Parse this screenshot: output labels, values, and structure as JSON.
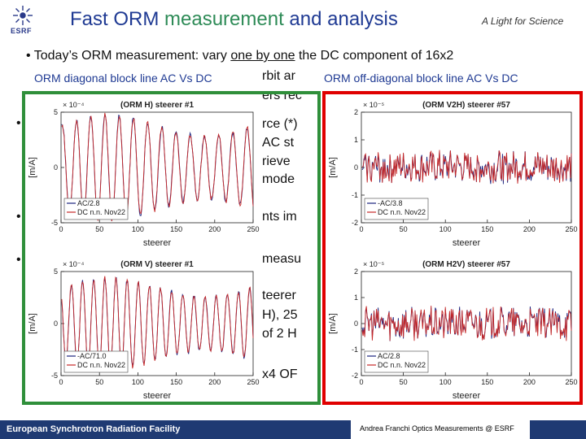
{
  "header": {
    "logo_text": "ESRF",
    "title_pre": "Fast ORM ",
    "title_hl": "measurement",
    "title_post": " and analysis",
    "tagline": "A Light for Science"
  },
  "bullets": [
    {
      "text_a": "• Today’s ORM measurement: vary ",
      "text_u": "one by one",
      "text_b": " the DC component of 16x2"
    },
    {
      "text": "rbit ar"
    },
    {
      "text": "ers rec"
    },
    {
      "text": "•"
    },
    {
      "text": "rce (*)"
    },
    {
      "text": "AC st"
    },
    {
      "text": "rieve"
    },
    {
      "text": "mode"
    },
    {
      "text": "•"
    },
    {
      "text": "nts im"
    },
    {
      "text": "•"
    },
    {
      "text": "measu"
    },
    {
      "text": "teerer"
    },
    {
      "text": "H), 25"
    },
    {
      "text": "of 2 H"
    },
    {
      "text": "x4 OF"
    }
  ],
  "panels": {
    "left_label": "ORM diagonal block line AC Vs DC",
    "right_label": "ORM off-diagonal block line AC Vs DC"
  },
  "footer": {
    "left": "European Synchrotron Radiation Facility",
    "right": "Andrea Franchi Optics Measurements  @ ESRF"
  },
  "chart_data": [
    {
      "type": "line",
      "title": "(ORM H) steerer #1",
      "xlabel": "steerer",
      "ylabel": "[m/A]",
      "exponent": "× 10⁻⁴",
      "xlim": [
        0,
        250
      ],
      "ylim": [
        -5,
        5
      ],
      "xticks": [
        0,
        50,
        100,
        150,
        200,
        250
      ],
      "yticks": [
        -5,
        0,
        5
      ],
      "series": [
        {
          "name": "AC/2.8",
          "color": "#1a237e",
          "amplitude": 3.8,
          "period": 18.5,
          "seed": 1
        },
        {
          "name": "DC n.n. Nov22",
          "color": "#c62828",
          "amplitude": 3.8,
          "period": 18.5,
          "seed": 1
        }
      ]
    },
    {
      "type": "line",
      "title": "(ORM V) steerer #1",
      "xlabel": "steerer",
      "ylabel": "[m/A]",
      "exponent": "× 10⁻⁴",
      "xlim": [
        0,
        250
      ],
      "ylim": [
        -5,
        5
      ],
      "xticks": [
        0,
        50,
        100,
        150,
        200,
        250
      ],
      "yticks": [
        -5,
        0,
        5
      ],
      "series": [
        {
          "name": "-AC/71.0",
          "color": "#1a237e",
          "amplitude": 3.5,
          "period": 14.5,
          "seed": 2
        },
        {
          "name": "DC n.n. Nov22",
          "color": "#c62828",
          "amplitude": 3.5,
          "period": 14.5,
          "seed": 2
        }
      ]
    },
    {
      "type": "line",
      "title": "(ORM V2H) steerer #57",
      "xlabel": "steerer",
      "ylabel": "[m/A]",
      "exponent": "× 10⁻⁵",
      "xlim": [
        0,
        250
      ],
      "ylim": [
        -2,
        2
      ],
      "xticks": [
        0,
        50,
        100,
        150,
        200,
        250
      ],
      "yticks": [
        -2,
        -1,
        0,
        1,
        2
      ],
      "series": [
        {
          "name": "-AC/3.8",
          "color": "#1a237e",
          "amplitude": 0.55,
          "period": 0,
          "seed": 3
        },
        {
          "name": "DC n.n. Nov22",
          "color": "#c62828",
          "amplitude": 0.55,
          "period": 0,
          "seed": 3
        }
      ]
    },
    {
      "type": "line",
      "title": "(ORM H2V) steerer #57",
      "xlabel": "steerer",
      "ylabel": "[m/A]",
      "exponent": "× 10⁻⁵",
      "xlim": [
        0,
        250
      ],
      "ylim": [
        -2,
        2
      ],
      "xticks": [
        0,
        50,
        100,
        150,
        200,
        250
      ],
      "yticks": [
        -2,
        -1,
        0,
        1,
        2
      ],
      "series": [
        {
          "name": "AC/2.8",
          "color": "#1a237e",
          "amplitude": 0.6,
          "period": 0,
          "seed": 4
        },
        {
          "name": "DC n.n. Nov22",
          "color": "#c62828",
          "amplitude": 0.6,
          "period": 0,
          "seed": 4
        }
      ]
    }
  ]
}
